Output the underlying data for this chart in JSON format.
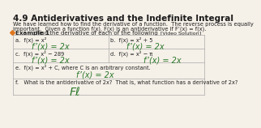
{
  "title": "4.9 Antiderivatives and the Indefinite Integral",
  "intro_line1": "We have learned how to find the derivative of a function.  The reverse process is equally",
  "intro_line2": "important.  Given a function f(x), F(x) is an antiderivative if F’(x) = f(x).",
  "example_label": "Example 1",
  "example_text": ": Find the derivative of each of the following",
  "video_label": "[Video Solution]",
  "bg_color": "#f5f0e8",
  "title_color": "#1a1a1a",
  "typed_color": "#222222",
  "handwritten_color": "#2d7a2d",
  "bullet_color": "#e07820",
  "grid_color": "#aaaaaa",
  "cell_a_typed": "a.  f(x) = x²",
  "cell_a_hw": "f’(x) = 2x",
  "cell_b_typed": "b.  f(x) = x² + 5",
  "cell_b_hw": "f’(x) = 2x",
  "cell_c_typed": "c.  f(x) = x² − 289",
  "cell_c_hw": "f’(x) = 2x",
  "cell_d_typed": "d.  f(x) = x² − π",
  "cell_d_hw": "f’(x) = 2x",
  "cell_e_typed": "e.  f(x) = x² + C, where C is an arbitrary constant.",
  "cell_e_hw": "f’(x) = 2x",
  "cell_f_typed": "f.   What is the antiderivative of 2x?  That is, what function has a derivative of 2x?",
  "cell_f_hw": "Fℓ"
}
